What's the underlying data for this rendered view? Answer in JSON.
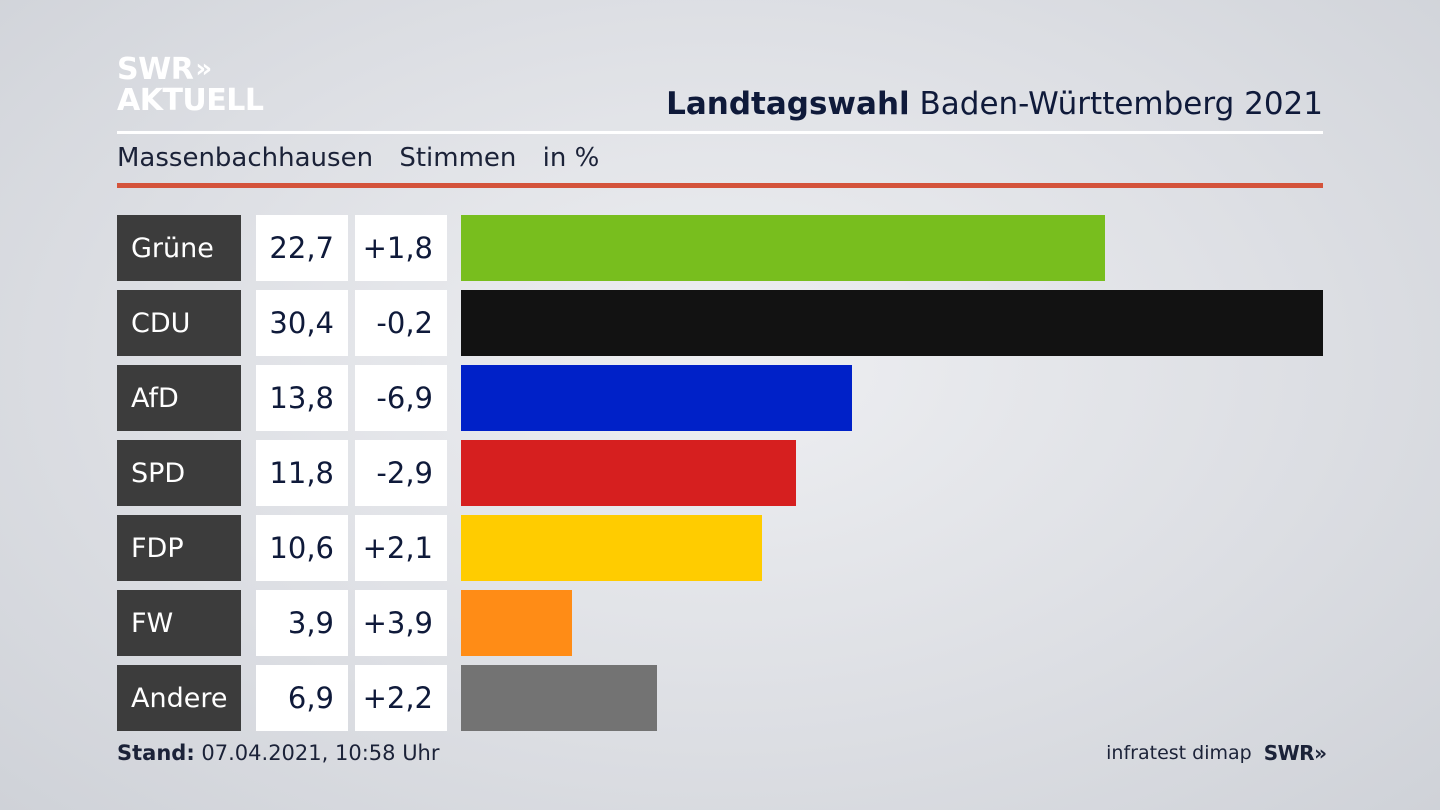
{
  "logo": {
    "line1": "SWR",
    "line1_chevrons": "»",
    "line2": "AKTUELL"
  },
  "header": {
    "title_bold": "Landtagswahl",
    "title_rest": "Baden-Württemberg 2021"
  },
  "subtitle": {
    "place": "Massenbachhausen",
    "measure": "Stimmen",
    "unit": "in %"
  },
  "colors": {
    "accent_rule": "#d4533b",
    "party_label_bg": "#3c3c3c"
  },
  "chart_data": {
    "type": "bar",
    "orientation": "horizontal",
    "categories": [
      "Grüne",
      "CDU",
      "AfD",
      "SPD",
      "FDP",
      "FW",
      "Andere"
    ],
    "values": [
      22.7,
      30.4,
      13.8,
      11.8,
      10.6,
      3.9,
      6.9
    ],
    "value_labels": [
      "22,7",
      "30,4",
      "13,8",
      "11,8",
      "10,6",
      "3,9",
      "6,9"
    ],
    "diff_labels": [
      "+1,8",
      "-0,2",
      "-6,9",
      "-2,9",
      "+2,1",
      "+3,9",
      "+2,2"
    ],
    "diffs": [
      1.8,
      -0.2,
      -6.9,
      -2.9,
      2.1,
      3.9,
      2.2
    ],
    "bar_colors": [
      "#78be1e",
      "#121212",
      "#0021c8",
      "#d61f1f",
      "#ffcc00",
      "#ff8c16",
      "#737373"
    ],
    "xlim": [
      0,
      30.4
    ],
    "grid": false
  },
  "footer": {
    "stand_label": "Stand:",
    "stand_value": "07.04.2021, 10:58 Uhr",
    "source": "infratest dimap",
    "brand": "SWR",
    "brand_chevrons": "»"
  }
}
